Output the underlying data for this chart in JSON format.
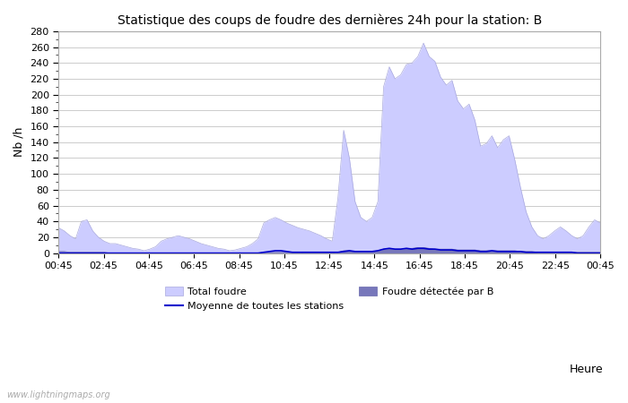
{
  "title": "Statistique des coups de foudre des dernières 24h pour la station: B",
  "xlabel": "Heure",
  "ylabel": "Nb /h",
  "ylim": [
    0,
    280
  ],
  "yticks": [
    0,
    20,
    40,
    60,
    80,
    100,
    120,
    140,
    160,
    180,
    200,
    220,
    240,
    260,
    280
  ],
  "x_labels": [
    "00:45",
    "02:45",
    "04:45",
    "06:45",
    "08:45",
    "10:45",
    "12:45",
    "14:45",
    "16:45",
    "18:45",
    "20:45",
    "22:45",
    "00:45"
  ],
  "watermark": "www.lightningmaps.org",
  "bg_color": "#ffffff",
  "plot_bg_color": "#ffffff",
  "grid_color": "#cccccc",
  "total_foudre_color": "#ccccff",
  "total_foudre_edge": "#aaaadd",
  "foudre_b_color": "#7777bb",
  "foudre_b_edge": "#6666aa",
  "moyenne_color": "#0000cc",
  "total_foudre_values": [
    32,
    28,
    22,
    18,
    40,
    42,
    28,
    20,
    15,
    12,
    12,
    10,
    8,
    6,
    5,
    3,
    5,
    8,
    15,
    18,
    20,
    22,
    20,
    18,
    15,
    12,
    10,
    8,
    6,
    5,
    3,
    4,
    6,
    8,
    12,
    18,
    38,
    42,
    45,
    42,
    38,
    35,
    32,
    30,
    28,
    25,
    22,
    18,
    15,
    70,
    155,
    120,
    65,
    45,
    40,
    45,
    65,
    210,
    235,
    220,
    225,
    238,
    240,
    248,
    265,
    248,
    242,
    222,
    212,
    218,
    192,
    182,
    188,
    168,
    135,
    138,
    148,
    133,
    143,
    148,
    118,
    83,
    52,
    33,
    22,
    18,
    22,
    28,
    33,
    28,
    22,
    18,
    22,
    33,
    42,
    38
  ],
  "foudre_b_values": [
    2,
    2,
    1,
    1,
    1,
    1,
    1,
    1,
    1,
    0,
    0,
    0,
    0,
    0,
    0,
    0,
    0,
    0,
    0,
    0,
    0,
    0,
    0,
    0,
    0,
    0,
    0,
    0,
    0,
    0,
    0,
    0,
    0,
    0,
    0,
    0,
    1,
    1,
    1,
    1,
    1,
    1,
    1,
    0,
    0,
    0,
    0,
    0,
    0,
    1,
    3,
    3,
    2,
    2,
    2,
    2,
    3,
    5,
    6,
    5,
    5,
    6,
    6,
    7,
    7,
    6,
    5,
    5,
    5,
    5,
    4,
    4,
    4,
    4,
    3,
    3,
    3,
    3,
    3,
    3,
    3,
    2,
    2,
    2,
    1,
    1,
    1,
    1,
    1,
    1,
    1,
    1,
    1,
    1,
    1,
    1
  ],
  "moyenne_values": [
    0,
    0,
    0,
    0,
    0,
    0,
    0,
    0,
    0,
    0,
    0,
    0,
    0,
    0,
    0,
    0,
    0,
    0,
    0,
    0,
    0,
    0,
    0,
    0,
    0,
    0,
    0,
    0,
    0,
    0,
    0,
    0,
    0,
    0,
    0,
    0,
    1,
    2,
    3,
    3,
    2,
    1,
    1,
    1,
    1,
    1,
    1,
    1,
    1,
    1,
    2,
    3,
    2,
    2,
    2,
    2,
    3,
    5,
    6,
    5,
    5,
    6,
    5,
    6,
    6,
    5,
    5,
    4,
    4,
    4,
    3,
    3,
    3,
    3,
    2,
    2,
    3,
    2,
    2,
    2,
    2,
    2,
    1,
    1,
    1,
    1,
    1,
    1,
    1,
    1,
    1,
    0,
    0,
    0,
    0,
    0
  ]
}
